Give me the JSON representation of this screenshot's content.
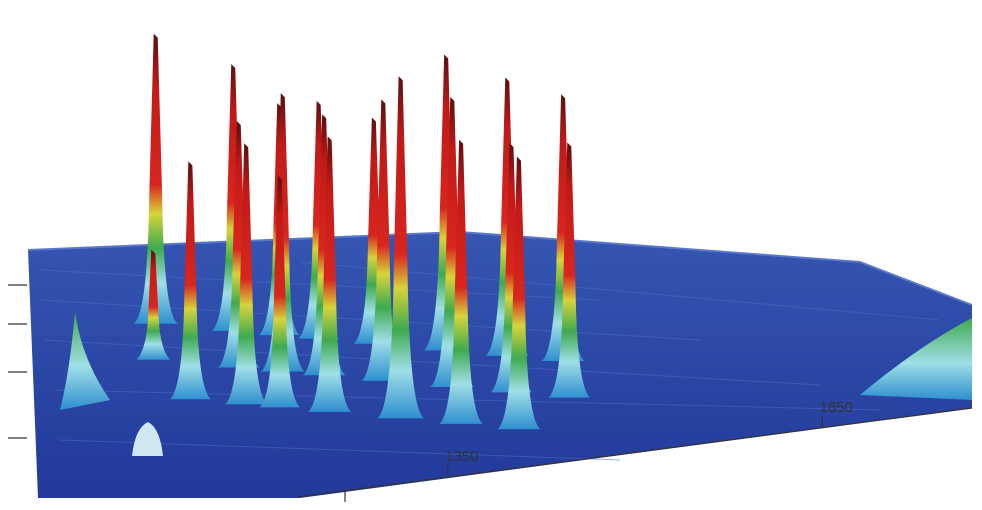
{
  "chart_data": {
    "type": "surface",
    "title": "",
    "xlabel": "",
    "ylabel": "",
    "zlabel": "",
    "x_axis": {
      "tick_labels": [
        "1350",
        "1850"
      ],
      "tick_values": [
        1350,
        1850
      ],
      "range": [
        1100,
        2150
      ]
    },
    "colorscale": [
      "#2c48a0",
      "#2f8fd0",
      "#9fdfe6",
      "#3faa4f",
      "#d7d43a",
      "#d8261e",
      "#5a0f0f"
    ],
    "peaks": [
      {
        "x": 1130,
        "height": 1.0
      },
      {
        "x": 1145,
        "height": 0.38
      },
      {
        "x": 1220,
        "height": 0.82
      },
      {
        "x": 1248,
        "height": 0.92
      },
      {
        "x": 1275,
        "height": 0.85
      },
      {
        "x": 1305,
        "height": 0.9
      },
      {
        "x": 1318,
        "height": 0.8
      },
      {
        "x": 1342,
        "height": 0.96
      },
      {
        "x": 1356,
        "height": 0.8
      },
      {
        "x": 1378,
        "height": 0.82
      },
      {
        "x": 1405,
        "height": 0.9
      },
      {
        "x": 1432,
        "height": 0.95
      },
      {
        "x": 1462,
        "height": 0.78
      },
      {
        "x": 1495,
        "height": 0.97
      },
      {
        "x": 1540,
        "height": 1.18
      },
      {
        "x": 1572,
        "height": 1.02
      },
      {
        "x": 1600,
        "height": 1.0
      },
      {
        "x": 1632,
        "height": 0.98
      },
      {
        "x": 1665,
        "height": 0.96
      },
      {
        "x": 1690,
        "height": 0.86
      },
      {
        "x": 1720,
        "height": 0.94
      },
      {
        "x": 1750,
        "height": 0.92
      },
      {
        "x": 1778,
        "height": 0.88
      }
    ]
  }
}
